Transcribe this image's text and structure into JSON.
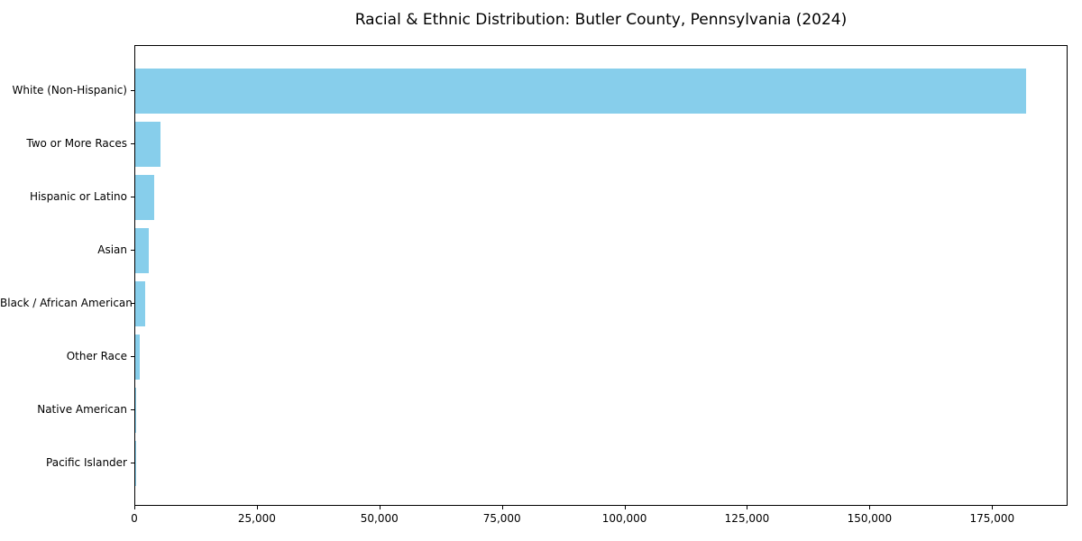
{
  "chart_data": {
    "type": "bar",
    "orientation": "horizontal",
    "title": "Racial & Ethnic Distribution: Butler County, Pennsylvania (2024)",
    "xlabel": "",
    "ylabel": "",
    "categories": [
      "White (Non-Hispanic)",
      "Two or More Races",
      "Hispanic or Latino",
      "Asian",
      "Black / African American",
      "Other Race",
      "Native American",
      "Pacific Islander"
    ],
    "values": [
      181700,
      5200,
      3900,
      2800,
      2000,
      900,
      200,
      50
    ],
    "xlim": [
      0,
      190400
    ],
    "xticks": [
      0,
      25000,
      50000,
      75000,
      100000,
      125000,
      150000,
      175000
    ],
    "xtick_labels": [
      "0",
      "25,000",
      "50,000",
      "75,000",
      "100,000",
      "125,000",
      "150,000",
      "175,000"
    ],
    "bar_color": "#87CEEB",
    "grid": false,
    "legend": "none"
  },
  "colors": {
    "background": "#ffffff",
    "bar": "#87CEEB",
    "spine": "#000000",
    "text": "#000000"
  }
}
